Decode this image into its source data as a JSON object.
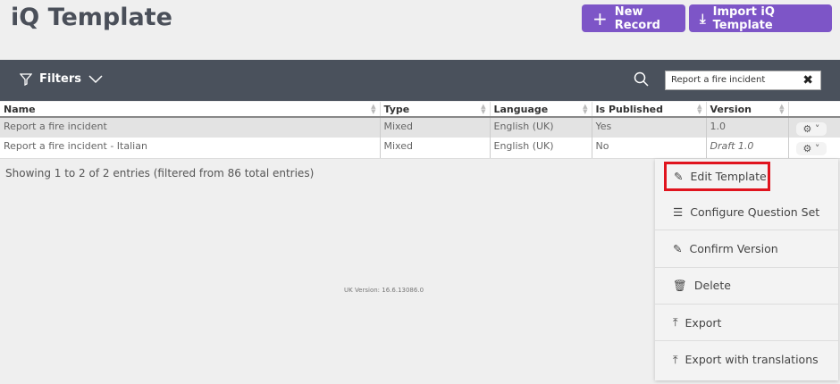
{
  "header": {
    "title": "iQ Template",
    "new_record": "New Record",
    "import": "Import iQ Template"
  },
  "filterbar": {
    "filters_label": "Filters",
    "search_value": "Report a fire incident"
  },
  "table": {
    "columns": [
      "Name",
      "Type",
      "Language",
      "Is Published",
      "Version"
    ],
    "rows": [
      [
        "Report a fire incident",
        "Mixed",
        "English (UK)",
        "Yes",
        "1.0"
      ],
      [
        "Report a fire incident - Italian",
        "Mixed",
        "English (UK)",
        "No",
        "Draft 1.0"
      ]
    ]
  },
  "info": "Showing 1 to 2 of 2 entries (filtered from 86 total entries)",
  "footer": {
    "version": "UK Version: 16.6.13086.0"
  },
  "menu": {
    "items": [
      {
        "label": "Edit Template",
        "icon": "edit-icon"
      },
      {
        "label": "Configure Question Set",
        "icon": "list-icon"
      },
      {
        "label": "Confirm Version",
        "icon": "edit-icon"
      },
      {
        "label": "Delete",
        "icon": "trash-icon"
      },
      {
        "label": "Export",
        "icon": "upload-icon"
      },
      {
        "label": "Export with translations",
        "icon": "upload-icon"
      }
    ]
  },
  "colors": {
    "accent": "#7d55c7",
    "bar": "#4a515c",
    "highlight": "#e0141e"
  }
}
